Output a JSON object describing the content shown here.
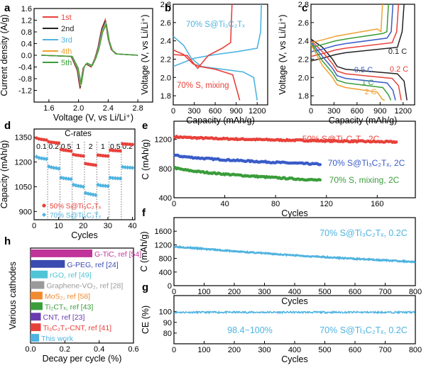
{
  "figure_letters": {
    "a": "a",
    "b": "b",
    "c": "c",
    "d": "d",
    "e": "e",
    "f": "f",
    "g": "g",
    "h": "h"
  },
  "chart_data": [
    {
      "panel": "a",
      "type": "line",
      "title": "",
      "xlabel": "Voltage (V, vs Li/Li⁺)",
      "ylabel": "Current density (A/g)",
      "xlim": [
        1.4,
        3.0
      ],
      "ylim": [
        -1.6,
        1.6
      ],
      "xticks": [
        "1.6",
        "2.0",
        "2.4",
        "2.8"
      ],
      "yticks": [
        "-1.2",
        "-0.8",
        "-0.4",
        "0.0",
        "0.4",
        "0.8",
        "1.2",
        "1.6"
      ],
      "legend": [
        "1st",
        "2nd",
        "3rd",
        "4th",
        "5th"
      ],
      "legend_position": "top-left",
      "colors": [
        "#e8413a",
        "#222222",
        "#4fb3e0",
        "#f0a030",
        "#3a9d3a"
      ],
      "series_shape": {
        "x": [
          1.5,
          1.9,
          1.98,
          2.02,
          2.06,
          2.1,
          2.17,
          2.22,
          2.26,
          2.31,
          2.36,
          2.4,
          2.44,
          2.5,
          2.8
        ],
        "y": [
          0.0,
          -0.04,
          -0.5,
          -1.15,
          -0.45,
          -0.3,
          -0.4,
          -0.1,
          0.25,
          0.9,
          1.22,
          0.55,
          0.2,
          0.05,
          0.0
        ]
      }
    },
    {
      "panel": "b",
      "type": "line",
      "title": "",
      "xlabel": "Capacity (mAh/g)",
      "ylabel": "Voltage (V, vs Li/Li⁺)",
      "xlim": [
        0,
        1350
      ],
      "ylim": [
        1.7,
        2.8
      ],
      "xticks": [
        "0",
        "300",
        "600",
        "900",
        "1200"
      ],
      "yticks": [
        "1.8",
        "2.0",
        "2.2",
        "2.4",
        "2.6",
        "2.8"
      ],
      "annotations": [
        "70% S@Ti₃C₂Tₓ",
        "70% S, mixing"
      ],
      "series": [
        {
          "name": "70% S@Ti₃C₂Tₓ charge",
          "color": "#4fb3e0",
          "x": [
            0,
            200,
            300,
            600,
            900,
            1200,
            1250,
            1260
          ],
          "y": [
            2.12,
            2.18,
            2.21,
            2.25,
            2.28,
            2.32,
            2.5,
            2.8
          ]
        },
        {
          "name": "70% S@Ti₃C₂Tₓ discharge",
          "color": "#4fb3e0",
          "x": [
            0,
            150,
            250,
            320,
            400,
            700,
            1000,
            1150,
            1200
          ],
          "y": [
            2.45,
            2.35,
            2.22,
            2.17,
            2.12,
            2.09,
            2.06,
            2.0,
            1.75
          ]
        },
        {
          "name": "70% S, mixing charge",
          "color": "#e8413a",
          "x": [
            0,
            200,
            350,
            500,
            700,
            820,
            840
          ],
          "y": [
            2.25,
            2.24,
            2.1,
            2.24,
            2.32,
            2.38,
            2.8
          ]
        },
        {
          "name": "70% S, mixing discharge",
          "color": "#e8413a",
          "x": [
            0,
            150,
            280,
            380,
            600,
            850,
            950
          ],
          "y": [
            2.3,
            2.25,
            2.15,
            2.12,
            2.09,
            2.03,
            1.75
          ]
        }
      ]
    },
    {
      "panel": "c",
      "type": "line",
      "title": "",
      "xlabel": "Capacity (mAh/g)",
      "ylabel": "Voltage (V, vs Li/Li⁺)",
      "xlim": [
        0,
        1350
      ],
      "ylim": [
        1.7,
        2.8
      ],
      "xticks": [
        "0",
        "300",
        "600",
        "900",
        "1200"
      ],
      "yticks": [
        "1.8",
        "2.0",
        "2.2",
        "2.4",
        "2.6",
        "2.8"
      ],
      "rate_labels": [
        "0.1 C",
        "0.2 C",
        "0.5 C",
        "1 C",
        "2 C"
      ],
      "rate_colors": [
        "#222222",
        "#e8413a",
        "#3a5cc8",
        "#3a9d3a",
        "#f0a030"
      ],
      "discharge_capacity": [
        1250,
        1175,
        1100,
        1040,
        960
      ]
    },
    {
      "panel": "d",
      "type": "scatter",
      "title": "C-rates",
      "xlabel": "Cycles",
      "ylabel": "Capacity (mAh/g)",
      "xlim": [
        0,
        41
      ],
      "ylim": [
        850,
        1400
      ],
      "xticks": [
        "0",
        "10",
        "20",
        "30",
        "40"
      ],
      "yticks": [
        "900",
        "1050",
        "1200",
        "1350"
      ],
      "rate_labels": [
        "0.1",
        "0.2",
        "0.5",
        "1",
        "2",
        "1",
        "0.5",
        "0.2"
      ],
      "series": [
        {
          "name": "50% S@Ti₃C₂Tₓ",
          "color": "#e8413a",
          "marker": "circle",
          "values": [
            1345,
            1340,
            1337,
            1335,
            1333,
            1322,
            1320,
            1318,
            1316,
            1315,
            1275,
            1272,
            1270,
            1268,
            1266,
            1245,
            1242,
            1240,
            1238,
            1236,
            1190,
            1187,
            1185,
            1183,
            1181,
            1242,
            1240,
            1238,
            1237,
            1236,
            1272,
            1270,
            1269,
            1268,
            1267,
            1310,
            1309,
            1308,
            1307,
            1306
          ]
        },
        {
          "name": "70% S@Ti₃C₂Tₓ",
          "color": "#4fb3e0",
          "marker": "diamond",
          "values": [
            1232,
            1225,
            1222,
            1220,
            1218,
            1172,
            1168,
            1165,
            1163,
            1160,
            1105,
            1102,
            1100,
            1098,
            1096,
            1062,
            1058,
            1055,
            1053,
            1050,
            1012,
            1008,
            1005,
            1002,
            1000,
            1062,
            1058,
            1056,
            1055,
            1053,
            1105,
            1103,
            1102,
            1101,
            1100,
            1170,
            1168,
            1167,
            1166,
            1165
          ]
        }
      ]
    },
    {
      "panel": "e",
      "type": "scatter",
      "title": "",
      "xlabel": "Cycles",
      "ylabel": "C (mAh/g)",
      "xlim": [
        0,
        190
      ],
      "ylim": [
        400,
        1450
      ],
      "xticks": [
        "0",
        "40",
        "80",
        "120",
        "160"
      ],
      "yticks": [
        "400",
        "800",
        "1200"
      ],
      "series": [
        {
          "name": "50% S@Ti₃C₂Tₓ, 2C",
          "color": "#e8413a",
          "cycles": 175,
          "start": 1240,
          "end": 1165
        },
        {
          "name": "70% S@Ti₃C₂Tₓ, 2C",
          "color": "#3a5cc8",
          "cycles": 115,
          "start": 990,
          "end": 860
        },
        {
          "name": "70% S, mixing, 2C",
          "color": "#3a9d3a",
          "cycles": 115,
          "start": 820,
          "end": 640
        }
      ]
    },
    {
      "panel": "f",
      "type": "line",
      "title": "",
      "xlabel": "Cycles",
      "ylabel": "C (mAh/g)",
      "xlim": [
        0,
        800
      ],
      "ylim": [
        0,
        2000
      ],
      "xticks": [
        "0",
        "100",
        "200",
        "300",
        "400",
        "500",
        "600",
        "700",
        "800"
      ],
      "yticks": [
        "0",
        "400",
        "800",
        "1200",
        "1600"
      ],
      "series": [
        {
          "name": "70% S@Ti₃C₂Tₓ, 0.2C",
          "color": "#4fb3e0",
          "x": [
            0,
            100,
            200,
            300,
            400,
            500,
            600,
            700,
            800
          ],
          "y": [
            1150,
            1080,
            1010,
            950,
            890,
            840,
            790,
            745,
            700
          ]
        }
      ]
    },
    {
      "panel": "g",
      "type": "line",
      "title": "",
      "xlabel": "Cycles",
      "ylabel": "CE (%)",
      "xlim": [
        0,
        800
      ],
      "ylim": [
        70,
        115
      ],
      "xticks": [
        "0",
        "100",
        "200",
        "300",
        "400",
        "500",
        "600",
        "700",
        "800"
      ],
      "yticks": [
        "80",
        "90",
        "100"
      ],
      "annotations": [
        "98.4~100%",
        "70% S@Ti₃C₂Tₓ, 0.2C"
      ],
      "series": [
        {
          "name": "70% S@Ti₃C₂Tₓ, 0.2C",
          "color": "#4fb3e0",
          "range": [
            98.4,
            100
          ]
        }
      ]
    },
    {
      "panel": "h",
      "type": "bar",
      "title": "",
      "xlabel": "Decay per cycle (%)",
      "ylabel": "Various cathodes",
      "xlim": [
        0,
        0.6
      ],
      "xticks": [
        "0.0",
        "0.2",
        "0.4",
        "0.6"
      ],
      "categories": [
        "G-TiC, ref [54]",
        "G-PEG, ref [24]",
        "rGO, ref [49]",
        "Graphene-VO₂, ref [28]",
        "MoS₂, ref [58]",
        "Ti₂CTₓ, ref [43]",
        "CNT, ref [23]",
        "Ti₃C₂Tₓ-CNT, ref [41]",
        "This work"
      ],
      "values": [
        0.36,
        0.2,
        0.1,
        0.08,
        0.07,
        0.07,
        0.06,
        0.06,
        0.05
      ],
      "colors": [
        "#c0339a",
        "#3a4cb0",
        "#4fc4d6",
        "#9a9a9a",
        "#f08a30",
        "#3a9d3a",
        "#6a3ab0",
        "#e8413a",
        "#4fb3e0"
      ]
    }
  ]
}
